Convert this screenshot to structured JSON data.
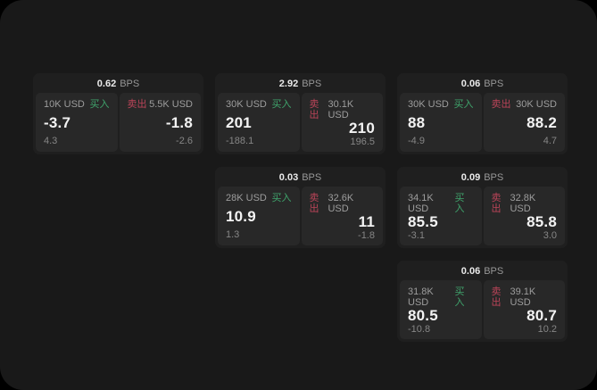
{
  "window": {
    "bps_suffix": "BPS",
    "buy_label": "买入",
    "sell_label": "卖出"
  },
  "colors": {
    "background": "#191919",
    "card_bg": "#1f1f1f",
    "pane_bg": "#282828",
    "buy_green": "#3fa46c",
    "sell_red": "#bb4459"
  },
  "cards": [
    {
      "bps": "0.62",
      "buy": {
        "size": "10K USD",
        "price": "-3.7",
        "change": "4.3"
      },
      "sell": {
        "size": "5.5K USD",
        "price": "-1.8",
        "change": "-2.6"
      }
    },
    {
      "bps": "2.92",
      "buy": {
        "size": "30K USD",
        "price": "201",
        "change": "-188.1"
      },
      "sell": {
        "size": "30.1K USD",
        "price": "210",
        "change": "196.5"
      }
    },
    {
      "bps": "0.06",
      "buy": {
        "size": "30K USD",
        "price": "88",
        "change": "-4.9"
      },
      "sell": {
        "size": "30K USD",
        "price": "88.2",
        "change": "4.7"
      }
    },
    {
      "bps": "0.03",
      "buy": {
        "size": "28K USD",
        "price": "10.9",
        "change": "1.3"
      },
      "sell": {
        "size": "32.6K USD",
        "price": "11",
        "change": "-1.8"
      }
    },
    {
      "bps": "0.09",
      "buy": {
        "size": "34.1K USD",
        "price": "85.5",
        "change": "-3.1"
      },
      "sell": {
        "size": "32.8K USD",
        "price": "85.8",
        "change": "3.0"
      }
    },
    {
      "bps": "0.06",
      "buy": {
        "size": "31.8K USD",
        "price": "80.5",
        "change": "-10.8"
      },
      "sell": {
        "size": "39.1K USD",
        "price": "80.7",
        "change": "10.2"
      }
    }
  ]
}
